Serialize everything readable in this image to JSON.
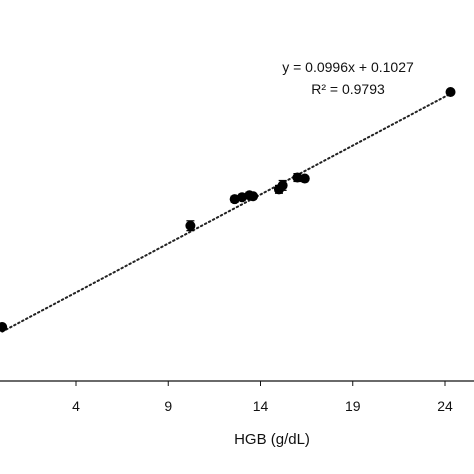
{
  "chart_data": {
    "type": "scatter",
    "title": "",
    "xlabel": "HGB (g/dL)",
    "ylabel": "",
    "xlim": [
      0,
      25.5
    ],
    "ylim": [
      0,
      2.75
    ],
    "x_ticks": [
      4,
      9,
      14,
      19,
      24
    ],
    "x_tick_labels": [
      "4",
      "9",
      "14",
      "19",
      "24"
    ],
    "grid": false,
    "series": [
      {
        "points": [
          {
            "x": 0.0,
            "y": 0.15,
            "err": 0.02
          },
          {
            "x": 10.2,
            "y": 1.18,
            "err": 0.05
          },
          {
            "x": 12.6,
            "y": 1.45,
            "err": 0.03
          },
          {
            "x": 13.0,
            "y": 1.47,
            "err": 0.02
          },
          {
            "x": 13.4,
            "y": 1.49,
            "err": 0.03
          },
          {
            "x": 13.6,
            "y": 1.48,
            "err": 0.02
          },
          {
            "x": 15.0,
            "y": 1.55,
            "err": 0.04
          },
          {
            "x": 15.2,
            "y": 1.59,
            "err": 0.05
          },
          {
            "x": 16.0,
            "y": 1.67,
            "err": 0.04
          },
          {
            "x": 16.4,
            "y": 1.66,
            "err": 0.02
          },
          {
            "x": 24.3,
            "y": 2.54,
            "err": 0.02
          }
        ]
      }
    ],
    "trendline": {
      "slope": 0.0996,
      "intercept": 0.1027,
      "x_range": [
        0,
        24.5
      ],
      "style": "dotted",
      "equation_label": "y = 0.0996x + 0.1027",
      "r2_label": "R² = 0.9793"
    }
  }
}
